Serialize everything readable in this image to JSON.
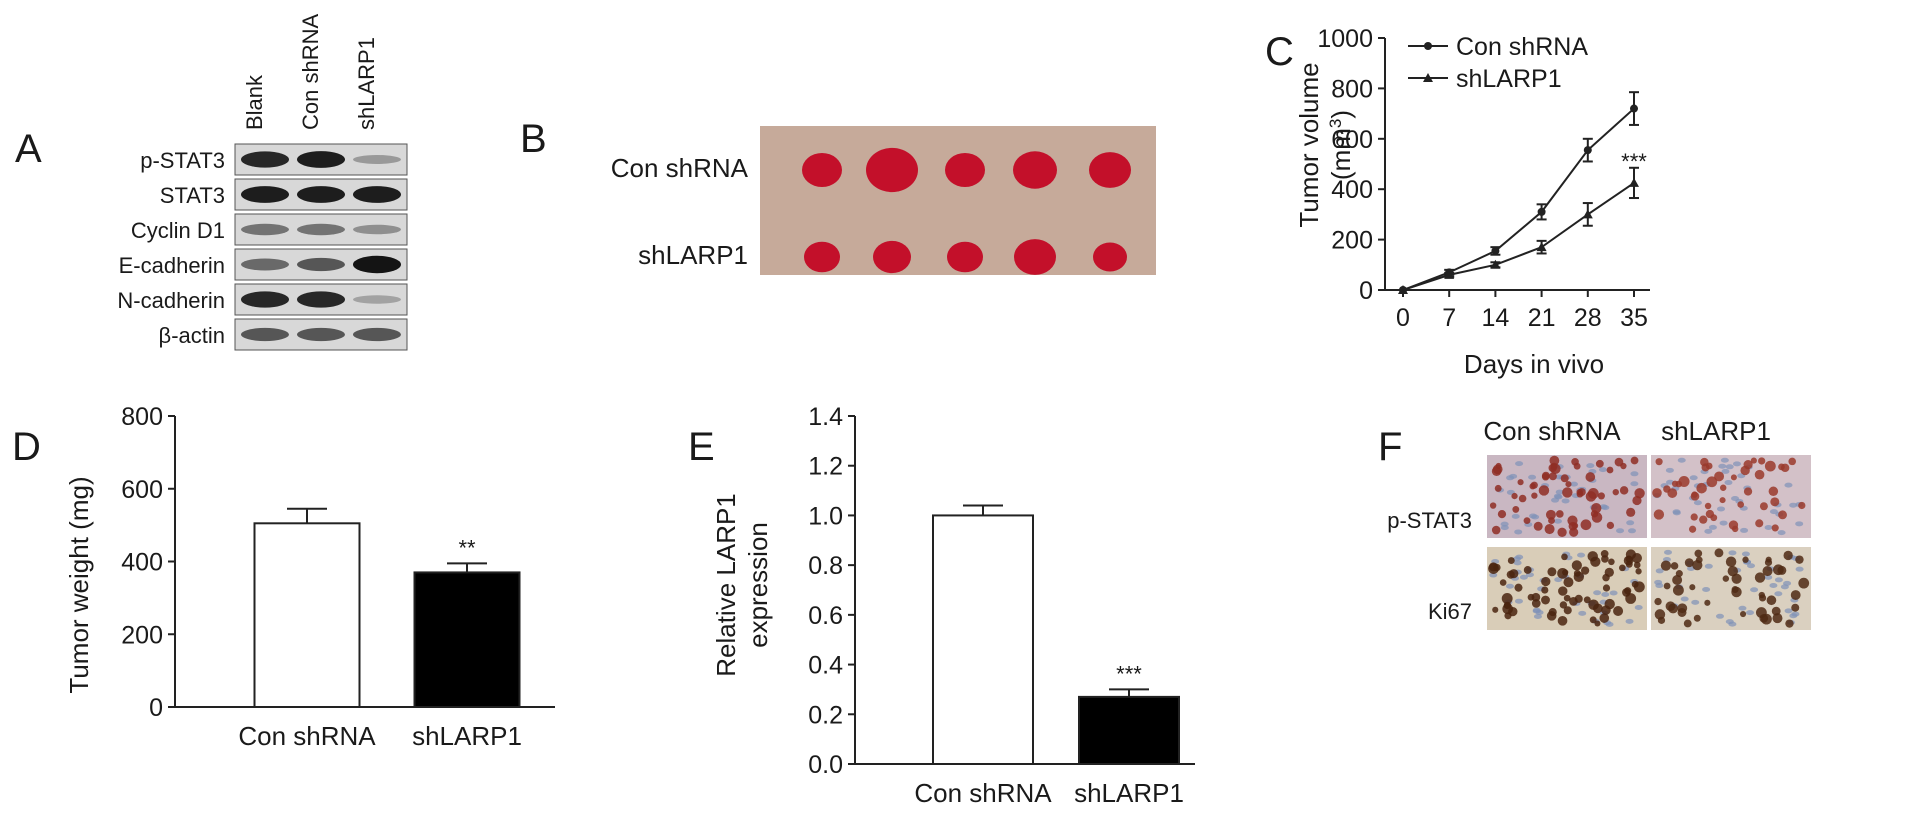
{
  "panels": {
    "A": {
      "letter": "A",
      "lanes": [
        "Blank",
        "Con shRNA",
        "shLARP1"
      ],
      "rows": [
        "p-STAT3",
        "STAT3",
        "Cyclin D1",
        "E-cadherin",
        "N-cadherin",
        "β-actin"
      ],
      "band_intensity": [
        [
          0.85,
          0.9,
          0.25
        ],
        [
          0.9,
          0.9,
          0.9
        ],
        [
          0.45,
          0.45,
          0.3
        ],
        [
          0.5,
          0.6,
          0.95
        ],
        [
          0.85,
          0.85,
          0.2
        ],
        [
          0.6,
          0.6,
          0.6
        ]
      ]
    },
    "B": {
      "letter": "B",
      "rows": [
        "Con shRNA",
        "shLARP1"
      ]
    },
    "C": {
      "letter": "C"
    },
    "D": {
      "letter": "D"
    },
    "E": {
      "letter": "E"
    },
    "F": {
      "letter": "F",
      "columns": [
        "Con shRNA",
        "shLARP1"
      ],
      "rows": [
        "p-STAT3",
        "Ki67"
      ]
    }
  },
  "chart_data": [
    {
      "id": "C",
      "type": "line",
      "x": [
        0,
        7,
        14,
        21,
        28,
        35
      ],
      "xlabel": "Days in vivo",
      "ylabel": "Tumor volume (mm3)",
      "ylabel_line1": "Tumor volume",
      "ylabel_line2_pre": "(mm",
      "ylabel_line2_sup": "3",
      "ylabel_line2_post": ")",
      "ylim": [
        0,
        1000
      ],
      "yticks": [
        0,
        200,
        400,
        600,
        800,
        1000
      ],
      "series": [
        {
          "name": "Con shRNA",
          "marker": "circle",
          "values": [
            0,
            70,
            155,
            310,
            555,
            720
          ],
          "errors": [
            0,
            10,
            15,
            30,
            45,
            65
          ]
        },
        {
          "name": "shLARP1",
          "marker": "triangle",
          "values": [
            0,
            60,
            100,
            170,
            300,
            425
          ],
          "errors": [
            0,
            8,
            10,
            25,
            45,
            60
          ]
        }
      ],
      "annotation": "***"
    },
    {
      "id": "D",
      "type": "bar",
      "categories": [
        "Con shRNA",
        "shLARP1"
      ],
      "values": [
        505,
        370
      ],
      "errors": [
        40,
        25
      ],
      "bar_colors": [
        "#ffffff",
        "#000000"
      ],
      "ylabel": "Tumor weight (mg)",
      "ylim": [
        0,
        800
      ],
      "yticks": [
        0,
        200,
        400,
        600,
        800
      ],
      "annotation": "**"
    },
    {
      "id": "E",
      "type": "bar",
      "categories": [
        "Con shRNA",
        "shLARP1"
      ],
      "values": [
        1.0,
        0.27
      ],
      "errors": [
        0.04,
        0.03
      ],
      "bar_colors": [
        "#ffffff",
        "#000000"
      ],
      "ylabel": "Relative LARP1 expression",
      "ylabel_line1": "Relative LARP1",
      "ylabel_line2": "expression",
      "ylim": [
        0,
        1.4
      ],
      "yticks": [
        "0.0",
        "0.2",
        "0.4",
        "0.6",
        "0.8",
        "1.0",
        "1.2",
        "1.4"
      ],
      "annotation": "***"
    }
  ]
}
